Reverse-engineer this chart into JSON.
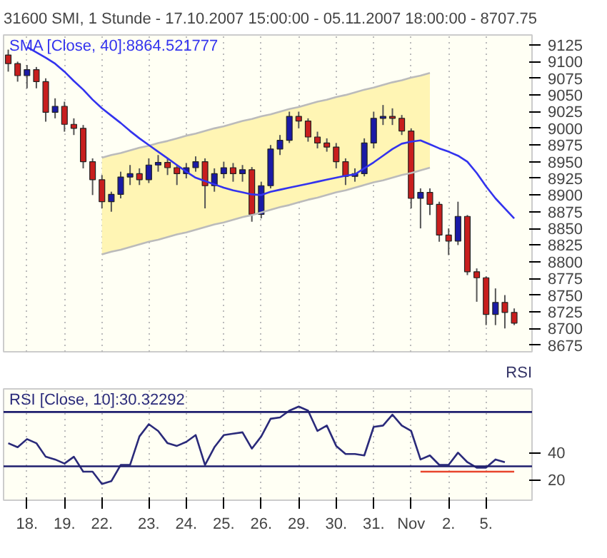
{
  "chart_data": [
    {
      "type": "candlestick",
      "title": "31600 SMI, 1 Stunde - 17.10.2007 15:00:00 - 05.11.2007 18:00:00 - 8707.75",
      "categories": [
        null,
        null,
        "18.",
        null,
        null,
        null,
        "19.",
        null,
        null,
        null,
        "22.",
        null,
        null,
        null,
        null,
        "23.",
        null,
        null,
        null,
        "24.",
        null,
        null,
        null,
        "25.",
        null,
        null,
        null,
        "26.",
        null,
        null,
        null,
        "29.",
        null,
        null,
        null,
        "30.",
        null,
        null,
        null,
        "31.",
        null,
        null,
        null,
        "Nov",
        null,
        null,
        null,
        "2.",
        null,
        null,
        null,
        "5.",
        null,
        null,
        null
      ],
      "ohlc": [
        [
          9110,
          9118,
          9085,
          9097
        ],
        [
          9097,
          9100,
          9070,
          9079
        ],
        [
          9079,
          9095,
          9060,
          9088
        ],
        [
          9088,
          9092,
          9060,
          9070
        ],
        [
          9070,
          9075,
          9010,
          9024
        ],
        [
          9024,
          9045,
          9015,
          9033
        ],
        [
          9033,
          9040,
          8995,
          9006
        ],
        [
          9006,
          9015,
          8990,
          9000
        ],
        [
          9000,
          9005,
          8940,
          8950
        ],
        [
          8950,
          8955,
          8900,
          8923
        ],
        [
          8923,
          8930,
          8880,
          8890
        ],
        [
          8890,
          8905,
          8875,
          8901
        ],
        [
          8901,
          8935,
          8895,
          8927
        ],
        [
          8927,
          8945,
          8915,
          8932
        ],
        [
          8932,
          8940,
          8915,
          8923
        ],
        [
          8923,
          8955,
          8918,
          8945
        ],
        [
          8945,
          8960,
          8935,
          8949
        ],
        [
          8949,
          8955,
          8930,
          8941
        ],
        [
          8941,
          8945,
          8915,
          8932
        ],
        [
          8932,
          8948,
          8925,
          8941
        ],
        [
          8941,
          8958,
          8935,
          8950
        ],
        [
          8950,
          8955,
          8880,
          8914
        ],
        [
          8914,
          8940,
          8905,
          8932
        ],
        [
          8932,
          8950,
          8925,
          8941
        ],
        [
          8941,
          8948,
          8920,
          8932
        ],
        [
          8932,
          8945,
          8920,
          8938
        ],
        [
          8938,
          8942,
          8860,
          8871
        ],
        [
          8871,
          8920,
          8865,
          8914
        ],
        [
          8914,
          8975,
          8910,
          8969
        ],
        [
          8969,
          8990,
          8960,
          8982
        ],
        [
          8982,
          9025,
          8978,
          9018
        ],
        [
          9018,
          9025,
          9000,
          9011
        ],
        [
          9011,
          9015,
          8980,
          8987
        ],
        [
          8987,
          8995,
          8970,
          8978
        ],
        [
          8978,
          8985,
          8965,
          8972
        ],
        [
          8972,
          8978,
          8940,
          8950
        ],
        [
          8950,
          8955,
          8915,
          8928
        ],
        [
          8928,
          8940,
          8920,
          8932
        ],
        [
          8932,
          8985,
          8928,
          8978
        ],
        [
          8978,
          9025,
          8970,
          9015
        ],
        [
          9015,
          9035,
          9005,
          9018
        ],
        [
          9018,
          9030,
          9005,
          9015
        ],
        [
          9015,
          9020,
          8990,
          8996
        ],
        [
          8996,
          9000,
          8880,
          8895
        ],
        [
          8895,
          8910,
          8850,
          8904
        ],
        [
          8904,
          8910,
          8870,
          8886
        ],
        [
          8886,
          8890,
          8830,
          8840
        ],
        [
          8840,
          8850,
          8810,
          8831
        ],
        [
          8831,
          8890,
          8825,
          8868
        ],
        [
          8868,
          8870,
          8780,
          8785
        ],
        [
          8785,
          8790,
          8740,
          8776
        ],
        [
          8776,
          8778,
          8705,
          8721
        ],
        [
          8721,
          8760,
          8705,
          8739
        ],
        [
          8739,
          8750,
          8700,
          8724
        ],
        [
          8724,
          8730,
          8705,
          8708
        ]
      ],
      "colors": [
        "#c81e1e",
        "#c81e1e",
        "#1a1aa6",
        "#c81e1e",
        "#c81e1e",
        "#1a1aa6",
        "#c81e1e",
        "#c81e1e",
        "#c81e1e",
        "#c81e1e",
        "#c81e1e",
        "#1a1aa6",
        "#1a1aa6",
        "#1a1aa6",
        "#c81e1e",
        "#1a1aa6",
        "#1a1aa6",
        "#c81e1e",
        "#c81e1e",
        "#1a1aa6",
        "#1a1aa6",
        "#c81e1e",
        "#1a1aa6",
        "#1a1aa6",
        "#c81e1e",
        "#1a1aa6",
        "#c81e1e",
        "#1a1aa6",
        "#1a1aa6",
        "#1a1aa6",
        "#1a1aa6",
        "#c81e1e",
        "#c81e1e",
        "#c81e1e",
        "#c81e1e",
        "#c81e1e",
        "#c81e1e",
        "#1a1aa6",
        "#1a1aa6",
        "#1a1aa6",
        "#1a1aa6",
        "#c81e1e",
        "#c81e1e",
        "#c81e1e",
        "#1a1aa6",
        "#c81e1e",
        "#c81e1e",
        "#c81e1e",
        "#1a1aa6",
        "#c81e1e",
        "#c81e1e",
        "#c81e1e",
        "#1a1aa6",
        "#c81e1e",
        "#c81e1e"
      ],
      "series": [
        {
          "type": "line",
          "color": "#bbbbbb",
          "values": [
            null,
            null,
            null,
            null,
            null,
            null,
            null,
            null,
            null,
            null,
            8956,
            8960,
            8963,
            8967,
            8971,
            8974,
            8978,
            8981,
            8985,
            8989,
            8992,
            8996,
            9000,
            9003,
            9007,
            9011,
            9014,
            9018,
            9021,
            9025,
            9029,
            9032,
            9036,
            9040,
            9043,
            9047,
            9050,
            9054,
            9058,
            9061,
            9065,
            9069,
            9072,
            9076,
            9079,
            9083,
            null,
            null,
            null,
            null,
            null,
            null,
            null,
            null,
            null
          ]
        },
        {
          "type": "line",
          "color": "#bbbbbb",
          "values": [
            null,
            null,
            null,
            null,
            null,
            null,
            null,
            null,
            null,
            null,
            8811,
            8815,
            8818,
            8822,
            8826,
            8830,
            8833,
            8837,
            8841,
            8844,
            8848,
            8852,
            8856,
            8859,
            8863,
            8867,
            8870,
            8874,
            8878,
            8882,
            8885,
            8889,
            8893,
            8896,
            8900,
            8904,
            8907,
            8911,
            8915,
            8919,
            8922,
            8926,
            8930,
            8933,
            8937,
            8941,
            null,
            null,
            null,
            null,
            null,
            null,
            null,
            null,
            null
          ],
          "lower": [
            null,
            null,
            null,
            null,
            null,
            null,
            null,
            null,
            null,
            null,
            8811,
            8815,
            8818,
            8822,
            8826,
            8830,
            8833,
            8837,
            8841,
            8844,
            8848,
            8852,
            8856,
            8859,
            8863,
            8867,
            8870,
            8874,
            8878,
            8882,
            8885,
            8889,
            8893,
            8896,
            8900,
            8904,
            8907,
            8911,
            8915,
            8919,
            8922,
            8926,
            8930,
            8933,
            8937,
            8941,
            null,
            null,
            null,
            null,
            null,
            null,
            null,
            null,
            null
          ],
          "upper": [
            null,
            null,
            null,
            null,
            null,
            null,
            null,
            null,
            null,
            null,
            8956,
            8960,
            8963,
            8967,
            8971,
            8974,
            8978,
            8981,
            8985,
            8989,
            8992,
            8996,
            9000,
            9003,
            9007,
            9011,
            9014,
            9018,
            9021,
            9025,
            9029,
            9032,
            9036,
            9040,
            9043,
            9047,
            9050,
            9054,
            9058,
            9061,
            9065,
            9069,
            9072,
            9076,
            9079,
            9083,
            null,
            null,
            null,
            null,
            null,
            null,
            null,
            null,
            null
          ]
        },
        {
          "type": "line",
          "name": "SMA [Close, 40]:8864.521777",
          "color": "#3333ee",
          "values": [
            null,
            null,
            9122,
            9114,
            9106,
            9097,
            9085,
            9071,
            9058,
            9043,
            9030,
            9019,
            9008,
            8996,
            8985,
            8975,
            8965,
            8955,
            8945,
            8935,
            8926,
            8921,
            8916,
            8911,
            8907,
            8904,
            8901,
            8900,
            8905,
            8908,
            8911,
            8914,
            8917,
            8920,
            8923,
            8926,
            8929,
            8931,
            8940,
            8949,
            8959,
            8969,
            8977,
            8980,
            8982,
            8976,
            8970,
            8965,
            8959,
            8950,
            8933,
            8913,
            8895,
            8880,
            8865
          ]
        }
      ],
      "ylim": [
        8665,
        9140
      ],
      "yticks": [
        8675,
        8700,
        8725,
        8750,
        8775,
        8800,
        8825,
        8850,
        8875,
        8900,
        8925,
        8950,
        8975,
        9000,
        9025,
        9050,
        9075,
        9100,
        9125
      ],
      "tick_labels": "y",
      "grid": "x"
    },
    {
      "type": "line",
      "ylabel": "RSI",
      "categories": [
        null,
        null,
        "18.",
        null,
        null,
        null,
        "19.",
        null,
        null,
        null,
        "22.",
        null,
        null,
        null,
        null,
        "23.",
        null,
        null,
        null,
        "24.",
        null,
        null,
        null,
        "25.",
        null,
        null,
        null,
        "26.",
        null,
        null,
        null,
        "29.",
        null,
        null,
        null,
        "30.",
        null,
        null,
        null,
        "31.",
        null,
        null,
        null,
        "Nov",
        null,
        null,
        null,
        "2.",
        null,
        null,
        null,
        "5.",
        null,
        null,
        null
      ],
      "series": [
        {
          "name": "RSI [Close, 10]:30.32292",
          "color": "#2a2a7a",
          "values": [
            47,
            44,
            50,
            47,
            37,
            35,
            32,
            37,
            26,
            26,
            17,
            19,
            31,
            31,
            52,
            61,
            56,
            47,
            45,
            48,
            53,
            31,
            44,
            53,
            54,
            55,
            43,
            52,
            65,
            66,
            71,
            74,
            71,
            56,
            60,
            45,
            39,
            39,
            38,
            59,
            60,
            68,
            60,
            56,
            35,
            38,
            31,
            31,
            40,
            33,
            29,
            29,
            35,
            33,
            null
          ]
        },
        {
          "color": "#e8452c",
          "values": [
            null,
            null,
            null,
            null,
            null,
            null,
            null,
            null,
            null,
            null,
            null,
            null,
            null,
            null,
            null,
            null,
            null,
            null,
            null,
            null,
            null,
            null,
            null,
            null,
            null,
            null,
            null,
            null,
            null,
            null,
            null,
            null,
            null,
            null,
            null,
            null,
            null,
            null,
            null,
            null,
            null,
            null,
            null,
            null,
            26,
            26,
            26,
            26,
            26,
            26,
            26,
            26,
            26,
            26,
            26
          ]
        }
      ],
      "ref_lines": [
        {
          "axis": "y",
          "value": 70,
          "color": "#1f1f6e"
        },
        {
          "axis": "y",
          "value": 30,
          "color": "#1f1f6e"
        }
      ],
      "ylim": [
        5,
        87
      ],
      "yticks": [
        20,
        40
      ],
      "grid": "x"
    }
  ]
}
